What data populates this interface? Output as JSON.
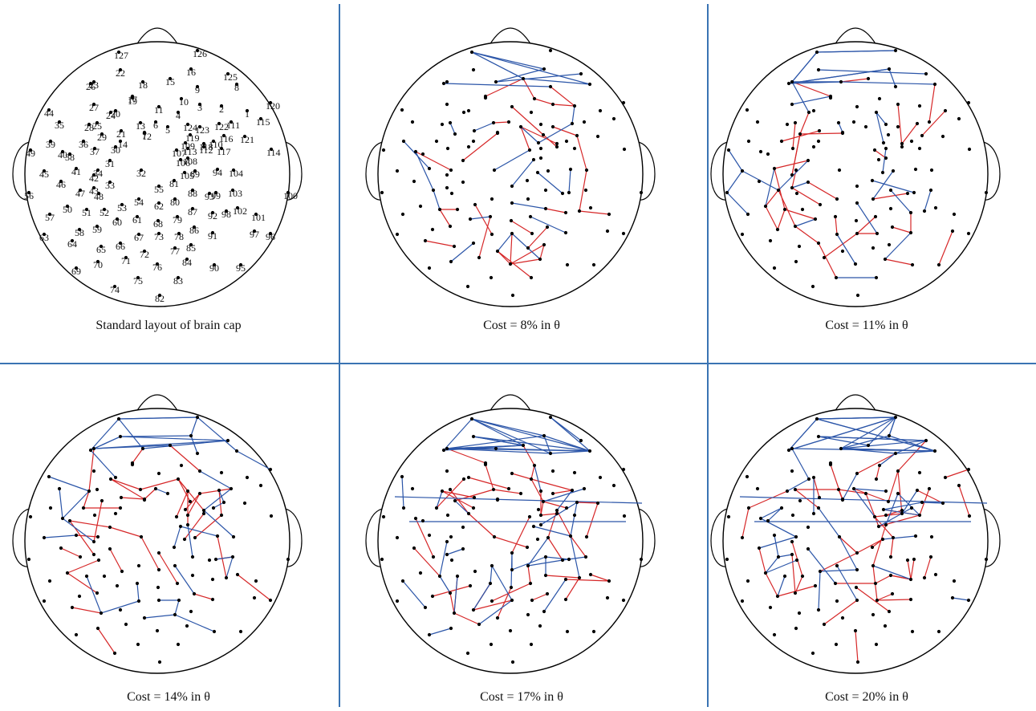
{
  "figure": {
    "panels": [
      {
        "id": "standard",
        "caption": "Standard layout of brain cap",
        "show_labels": true
      },
      {
        "id": "cost8",
        "caption": "Cost = 8% in θ"
      },
      {
        "id": "cost11",
        "caption": "Cost = 11% in θ"
      },
      {
        "id": "cost14",
        "caption": "Cost = 14% in θ"
      },
      {
        "id": "cost17",
        "caption": "Cost = 17% in θ"
      },
      {
        "id": "cost20",
        "caption": "Cost = 20% in θ"
      }
    ],
    "colors": {
      "red_edge": "#d62728",
      "blue_edge": "#2b55a8",
      "divider": "#3a73b3",
      "electrode": "#000000",
      "outline": "#000000"
    }
  }
}
